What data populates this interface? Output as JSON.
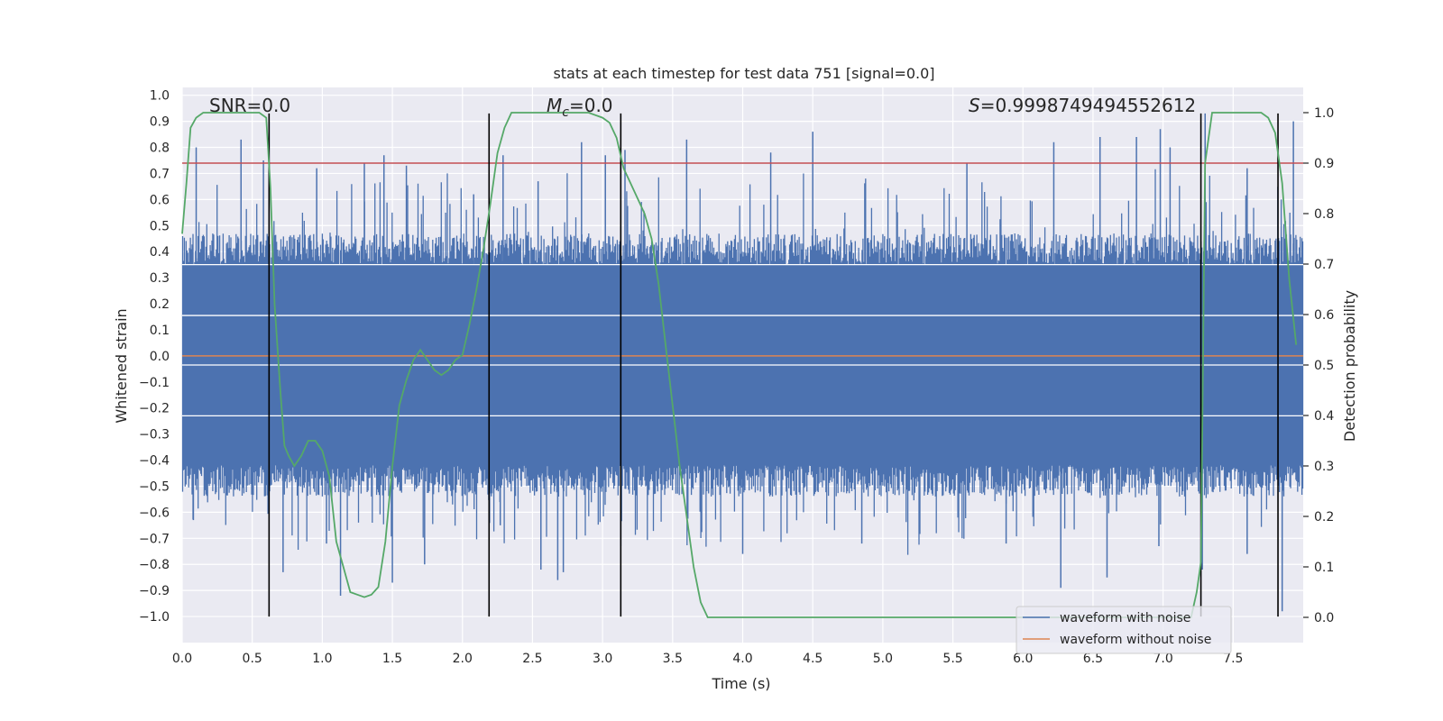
{
  "chart_data": {
    "type": "line",
    "title": "stats at each timestep for test data 751 [signal=0.0]",
    "xlabel": "Time (s)",
    "ylabel": "Whitened strain",
    "y2label": "Detection probability",
    "xlim": [
      0.0,
      8.0
    ],
    "ylim": [
      -1.1,
      1.03
    ],
    "y2lim": [
      -0.05,
      1.05
    ],
    "xticks": [
      "0.0",
      "0.5",
      "1.0",
      "1.5",
      "2.0",
      "2.5",
      "3.0",
      "3.5",
      "4.0",
      "4.5",
      "5.0",
      "5.5",
      "6.0",
      "6.5",
      "7.0",
      "7.5"
    ],
    "yticks": [
      "1.0",
      "0.9",
      "0.8",
      "0.7",
      "0.6",
      "0.5",
      "0.4",
      "0.3",
      "0.2",
      "0.1",
      "0.0",
      "−0.1",
      "−0.2",
      "−0.3",
      "−0.4",
      "−0.5",
      "−0.6",
      "−0.7",
      "−0.8",
      "−0.9",
      "−1.0"
    ],
    "y2ticks": [
      "1.0",
      "0.9",
      "0.8",
      "0.7",
      "0.6",
      "0.5",
      "0.4",
      "0.3",
      "0.2",
      "0.1",
      "0.0"
    ],
    "annotations": {
      "snr": "SNR=0.0",
      "mc_symbol": "M",
      "mc_sub": "c",
      "mc_value": "=0.0",
      "s_symbol": "S",
      "s_value": "=0.9998749494552612"
    },
    "threshold_line": {
      "axis": "y2",
      "value": 0.9,
      "color": "#c44e52"
    },
    "zero_line": {
      "axis": "y",
      "value": 0.0,
      "color": "#dd8452"
    },
    "white_lines_y": [
      0.35,
      0.155,
      -0.035,
      -0.23
    ],
    "vertical_lines_x": [
      0.62,
      2.19,
      3.13,
      7.27,
      7.82
    ],
    "vertical_line_ymax": 0.93,
    "vertical_line_ymin": -1.0,
    "noise_series": {
      "name": "waveform with noise",
      "color": "#4c72b0",
      "envelope_upper_baseline": 0.35,
      "envelope_lower_baseline": -0.42,
      "spikes_up": [
        [
          0.1,
          0.8
        ],
        [
          0.42,
          0.83
        ],
        [
          0.58,
          0.75
        ],
        [
          0.62,
          0.9
        ],
        [
          0.96,
          0.72
        ],
        [
          1.3,
          0.74
        ],
        [
          1.44,
          0.77
        ],
        [
          1.6,
          0.73
        ],
        [
          2.08,
          0.62
        ],
        [
          2.29,
          0.77
        ],
        [
          2.54,
          0.67
        ],
        [
          2.85,
          0.82
        ],
        [
          3.02,
          0.77
        ],
        [
          3.16,
          0.79
        ],
        [
          3.6,
          0.83
        ],
        [
          4.2,
          0.78
        ],
        [
          4.5,
          0.86
        ],
        [
          5.6,
          0.74
        ],
        [
          6.22,
          0.82
        ],
        [
          6.55,
          0.84
        ],
        [
          6.81,
          0.84
        ],
        [
          6.98,
          0.87
        ],
        [
          7.05,
          0.8
        ],
        [
          7.3,
          0.93
        ],
        [
          7.6,
          0.72
        ],
        [
          7.93,
          0.9
        ]
      ],
      "spikes_down": [
        [
          0.08,
          -0.63
        ],
        [
          0.72,
          -0.83
        ],
        [
          1.03,
          -0.72
        ],
        [
          1.13,
          -0.92
        ],
        [
          1.5,
          -0.87
        ],
        [
          1.73,
          -0.8
        ],
        [
          2.27,
          -0.65
        ],
        [
          2.56,
          -0.82
        ],
        [
          2.68,
          -0.86
        ],
        [
          2.72,
          -0.83
        ],
        [
          3.13,
          -0.73
        ],
        [
          4.0,
          -0.76
        ],
        [
          4.85,
          -0.72
        ],
        [
          5.88,
          -0.72
        ],
        [
          6.27,
          -0.89
        ],
        [
          6.6,
          -0.85
        ],
        [
          6.97,
          -0.73
        ],
        [
          7.28,
          -0.82
        ],
        [
          7.6,
          -0.76
        ],
        [
          7.85,
          -0.98
        ]
      ]
    },
    "clean_series": {
      "name": "waveform without noise",
      "color": "#dd8452"
    },
    "probability_series": {
      "name": "detection probability",
      "color": "#55a868",
      "x": [
        0.0,
        0.03,
        0.06,
        0.1,
        0.15,
        0.2,
        0.3,
        0.4,
        0.5,
        0.55,
        0.6,
        0.63,
        0.66,
        0.7,
        0.73,
        0.76,
        0.8,
        0.85,
        0.9,
        0.95,
        1.0,
        1.05,
        1.1,
        1.15,
        1.2,
        1.25,
        1.3,
        1.35,
        1.4,
        1.45,
        1.5,
        1.55,
        1.6,
        1.65,
        1.7,
        1.75,
        1.8,
        1.85,
        1.9,
        1.95,
        2.0,
        2.05,
        2.1,
        2.15,
        2.2,
        2.25,
        2.3,
        2.35,
        2.4,
        2.5,
        2.7,
        2.9,
        3.0,
        3.05,
        3.1,
        3.15,
        3.2,
        3.25,
        3.3,
        3.35,
        3.4,
        3.45,
        3.5,
        3.55,
        3.6,
        3.65,
        3.7,
        3.75,
        3.8,
        4.0,
        5.0,
        6.0,
        7.0,
        7.2,
        7.24,
        7.27,
        7.3,
        7.35,
        7.4,
        7.5,
        7.6,
        7.7,
        7.75,
        7.8,
        7.85,
        7.9,
        7.95
      ],
      "y": [
        0.76,
        0.86,
        0.97,
        0.99,
        1.0,
        1.0,
        1.0,
        1.0,
        1.0,
        1.0,
        0.99,
        0.85,
        0.62,
        0.45,
        0.34,
        0.32,
        0.3,
        0.32,
        0.35,
        0.35,
        0.33,
        0.28,
        0.15,
        0.1,
        0.05,
        0.045,
        0.04,
        0.045,
        0.06,
        0.15,
        0.3,
        0.42,
        0.47,
        0.51,
        0.53,
        0.51,
        0.49,
        0.48,
        0.49,
        0.51,
        0.52,
        0.58,
        0.65,
        0.73,
        0.82,
        0.92,
        0.97,
        1.0,
        1.0,
        1.0,
        1.0,
        1.0,
        0.99,
        0.98,
        0.95,
        0.89,
        0.86,
        0.83,
        0.8,
        0.75,
        0.66,
        0.54,
        0.42,
        0.3,
        0.2,
        0.1,
        0.03,
        0.0,
        0.0,
        0.0,
        0.0,
        0.0,
        0.0,
        0.0,
        0.05,
        0.11,
        0.9,
        1.0,
        1.0,
        1.0,
        1.0,
        1.0,
        0.99,
        0.96,
        0.86,
        0.67,
        0.54
      ]
    },
    "legend": {
      "position": "lower-right",
      "entries": [
        {
          "label": "waveform with noise",
          "color": "#4c72b0"
        },
        {
          "label": "waveform without noise",
          "color": "#dd8452"
        }
      ]
    }
  }
}
